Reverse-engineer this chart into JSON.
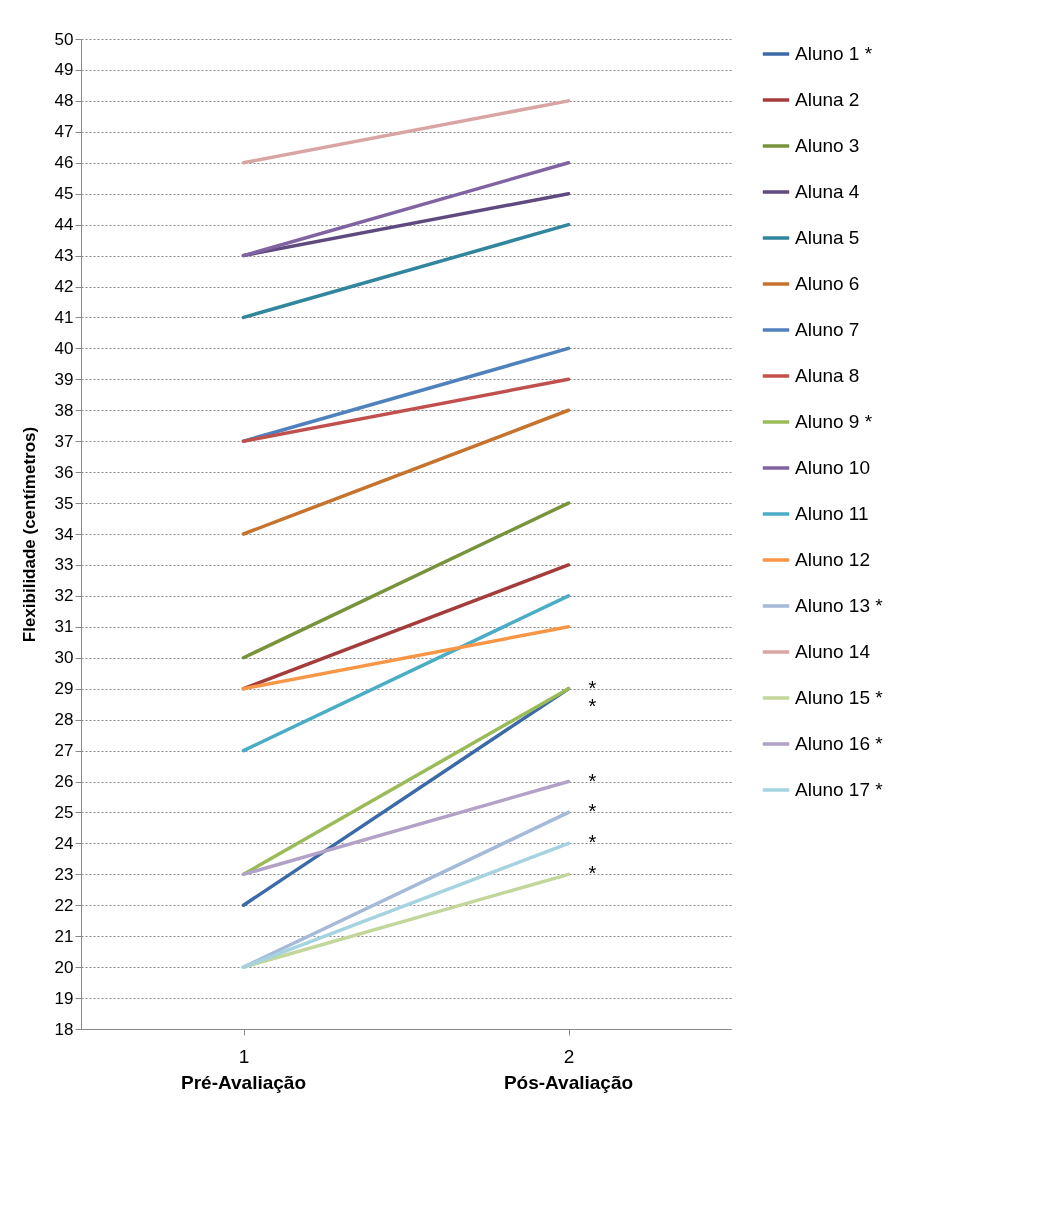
{
  "chart_data": {
    "type": "line",
    "ylabel": "Flexibilidade (centímetros)",
    "categories": [
      "1",
      "2"
    ],
    "ylim": [
      18,
      50
    ],
    "yticks": [
      18,
      19,
      20,
      21,
      22,
      23,
      24,
      25,
      26,
      27,
      28,
      29,
      30,
      31,
      32,
      33,
      34,
      35,
      36,
      37,
      38,
      39,
      40,
      41,
      42,
      43,
      44,
      45,
      46,
      47,
      48,
      49,
      50
    ],
    "grid": "y",
    "legend": "right",
    "line_style": "solid",
    "series": [
      {
        "name": "Aluno 1 *",
        "color": "#3c6aa6",
        "values": [
          22,
          29
        ]
      },
      {
        "name": "Aluna 2",
        "color": "#a33c3a",
        "values": [
          29,
          33
        ]
      },
      {
        "name": "Aluno 3",
        "color": "#77933c",
        "values": [
          30,
          35
        ]
      },
      {
        "name": "Aluna 4",
        "color": "#5f4a7f",
        "values": [
          43,
          45
        ]
      },
      {
        "name": "Aluna 5",
        "color": "#31859c",
        "values": [
          41,
          44
        ]
      },
      {
        "name": "Aluno 6",
        "color": "#c6732e",
        "values": [
          34,
          38
        ]
      },
      {
        "name": "Aluno 7",
        "color": "#4f81bd",
        "values": [
          37,
          40
        ]
      },
      {
        "name": "Aluna 8",
        "color": "#c0504d",
        "values": [
          37,
          39
        ]
      },
      {
        "name": "Aluno 9 *",
        "color": "#9bbb59",
        "values": [
          23,
          29
        ]
      },
      {
        "name": "Aluno 10",
        "color": "#8064a2",
        "values": [
          43,
          46
        ]
      },
      {
        "name": "Aluno 11",
        "color": "#4bacc6",
        "values": [
          27,
          32
        ]
      },
      {
        "name": "Aluno 12",
        "color": "#f79646",
        "values": [
          29,
          31
        ]
      },
      {
        "name": "Aluno 13 *",
        "color": "#a5b9d9",
        "values": [
          20,
          25
        ]
      },
      {
        "name": "Aluno 14",
        "color": "#d9a5a4",
        "values": [
          46,
          48
        ]
      },
      {
        "name": "Aluno 15 *",
        "color": "#c3d69b",
        "values": [
          20,
          23
        ]
      },
      {
        "name": "Aluno 16 *",
        "color": "#b3a2c7",
        "values": [
          23,
          26
        ]
      },
      {
        "name": "Aluno 17 *",
        "color": "#a5d3e0",
        "values": [
          20,
          24
        ]
      }
    ],
    "annotations": [
      "Pré-Avaliação",
      "Pós-Avaliação",
      {
        "text": "*",
        "x": "2",
        "y": 29
      },
      {
        "text": "*",
        "x": "2",
        "y": 29
      },
      {
        "text": "*",
        "x": "2",
        "y": 26
      },
      {
        "text": "*",
        "x": "2",
        "y": 25
      },
      {
        "text": "*",
        "x": "2",
        "y": 24
      },
      {
        "text": "*",
        "x": "2",
        "y": 23
      }
    ]
  }
}
